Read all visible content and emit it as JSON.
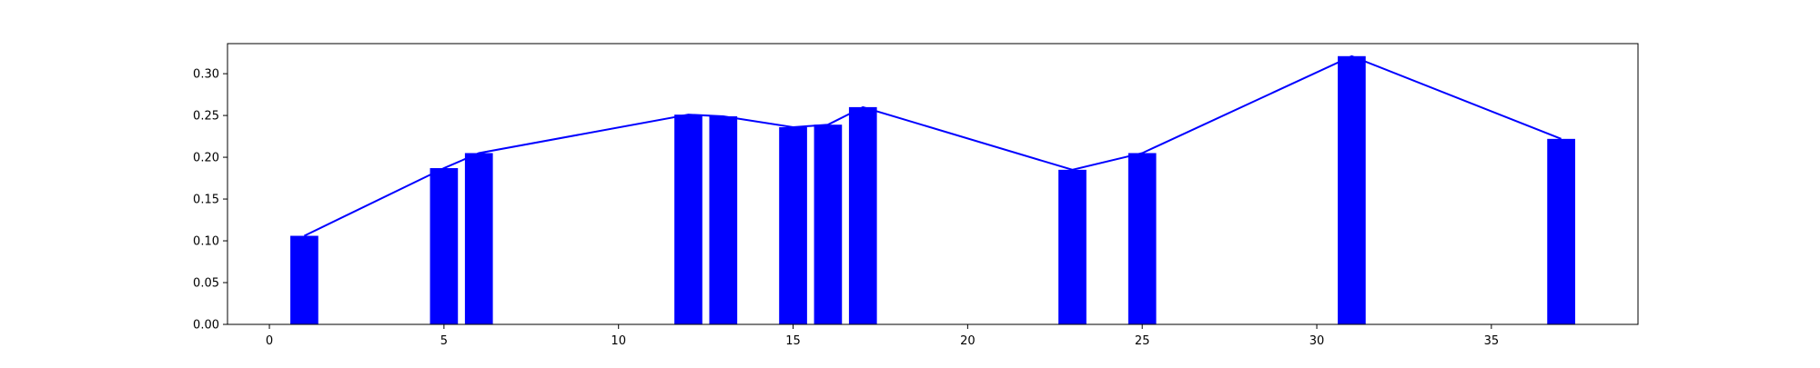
{
  "chart_data": {
    "type": "bar",
    "x": [
      1,
      5,
      6,
      12,
      13,
      15,
      16,
      17,
      23,
      25,
      31,
      37
    ],
    "values": [
      0.106,
      0.187,
      0.205,
      0.251,
      0.249,
      0.236,
      0.239,
      0.26,
      0.185,
      0.205,
      0.321,
      0.222
    ],
    "line_overlay": true,
    "xlim": [
      -1.2,
      39.2
    ],
    "ylim": [
      0,
      0.336
    ],
    "xticks": [
      0,
      5,
      10,
      15,
      20,
      25,
      30,
      35
    ],
    "yticks": [
      0.0,
      0.05,
      0.1,
      0.15,
      0.2,
      0.25,
      0.3
    ],
    "xtick_labels": [
      "0",
      "5",
      "10",
      "15",
      "20",
      "25",
      "30",
      "35"
    ],
    "ytick_labels": [
      "0.00",
      "0.05",
      "0.10",
      "0.15",
      "0.20",
      "0.25",
      "0.30"
    ],
    "bar_width": 0.8,
    "color": "#0000ff",
    "title": "",
    "xlabel": "",
    "ylabel": "",
    "grid": false,
    "legend": false
  }
}
